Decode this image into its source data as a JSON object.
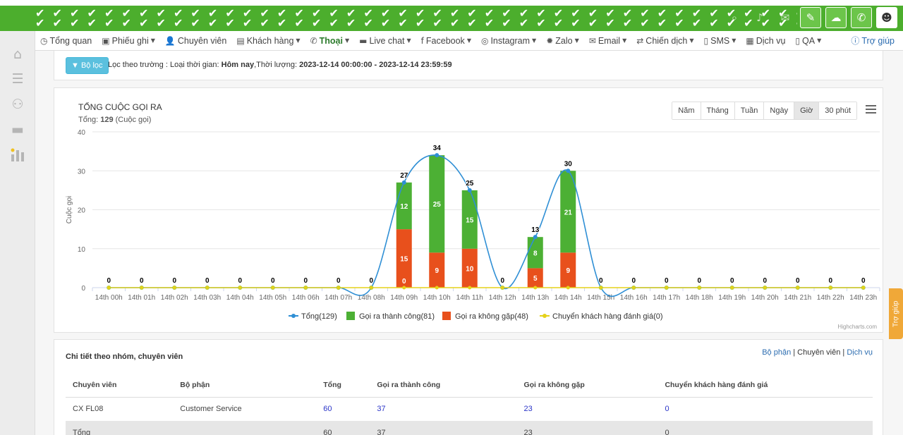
{
  "header": {
    "pattern": "✔ ✔ ✔ ✔ ✔ ✔ ✔ ✔ ✔ ✔ ✔ ✔ ✔ ✔ ✔ ✔ ✔ ✔ ✔ ✔ ✔ ✔ ✔ ✔ ✔ ✔ ✔ ✔ ✔ ✔ ✔ ✔ ✔ ✔ ✔ ✔ ✔ ✔ ✔ ✔ ✔ ✔ ✔ ✔ ✔ ✔ ✔ ✔ ✔ ✔ ✔ ✔ ✔ ✔ ✔ ✔ ✔ ✔ ✔ ✔ ✔ ✔ ✔ ✔",
    "icons": [
      "search-icon",
      "bell-icon",
      "mail-icon",
      "ticket-icon",
      "chat-icon",
      "phone-icon",
      "user-icon"
    ]
  },
  "sidebar": {
    "icons": [
      "home-icon",
      "list-icon",
      "users-icon",
      "chat-bubble-icon",
      "bar-chart-icon"
    ]
  },
  "nav": {
    "items": [
      {
        "icon": "◷",
        "label": "Tổng quan",
        "caret": false
      },
      {
        "icon": "▣",
        "label": "Phiếu ghi",
        "caret": true
      },
      {
        "icon": "👤",
        "label": "Chuyên viên",
        "caret": false
      },
      {
        "icon": "▤",
        "label": "Khách hàng",
        "caret": true
      },
      {
        "icon": "✆",
        "label": "Thoại",
        "caret": true
      },
      {
        "icon": "▬",
        "label": "Live chat",
        "caret": true
      },
      {
        "icon": "f",
        "label": "Facebook",
        "caret": true
      },
      {
        "icon": "◎",
        "label": "Instagram",
        "caret": true
      },
      {
        "icon": "✹",
        "label": "Zalo",
        "caret": true
      },
      {
        "icon": "✉",
        "label": "Email",
        "caret": true
      },
      {
        "icon": "⇄",
        "label": "Chiến dịch",
        "caret": true
      },
      {
        "icon": "▯",
        "label": "SMS",
        "caret": true
      },
      {
        "icon": "▦",
        "label": "Dịch vụ",
        "caret": false
      },
      {
        "icon": "▯",
        "label": "QA",
        "caret": true
      }
    ],
    "help": "Trợ giúp"
  },
  "filter": {
    "button": "Bộ lọc",
    "prefix": "Lọc theo trường : Loại thời gian:",
    "time_type": "Hôm nay",
    "duration_label": ",Thời lượng:",
    "duration": "2023-12-14 00:00:00 - 2023-12-14 23:59:59"
  },
  "chart_panel": {
    "title": "TỔNG CUỘC GỌI RA",
    "subtitle_prefix": "Tổng:",
    "subtitle_total": "129",
    "subtitle_suffix": "(Cuộc gọi)",
    "ranges": [
      "Năm",
      "Tháng",
      "Tuần",
      "Ngày",
      "Giờ",
      "30 phút"
    ],
    "active_range": "Giờ",
    "credits": "Highcharts.com"
  },
  "chart_data": {
    "type": "bar",
    "ylabel": "Cuộc gọi",
    "ylim": [
      0,
      40
    ],
    "yticks": [
      0,
      10,
      20,
      30,
      40
    ],
    "categories": [
      "14th 00h",
      "14th 01h",
      "14th 02h",
      "14th 03h",
      "14th 04h",
      "14th 05h",
      "14th 06h",
      "14th 07h",
      "14th 08h",
      "14th 09h",
      "14th 10h",
      "14th 11h",
      "14th 12h",
      "14th 13h",
      "14th 14h",
      "14th 15h",
      "14th 16h",
      "14th 17h",
      "14th 18h",
      "14th 19h",
      "14th 20h",
      "14th 21h",
      "14th 22h",
      "14th 23h"
    ],
    "series": [
      {
        "name": "Tổng(129)",
        "kind": "spline",
        "color": "#2f8fd5",
        "values": [
          0,
          0,
          0,
          0,
          0,
          0,
          0,
          0,
          0,
          27,
          34,
          25,
          0,
          13,
          30,
          0,
          0,
          0,
          0,
          0,
          0,
          0,
          0,
          0
        ]
      },
      {
        "name": "Gọi ra thành công(81)",
        "kind": "stacked-column",
        "color": "#4cb034",
        "values": [
          0,
          0,
          0,
          0,
          0,
          0,
          0,
          0,
          0,
          12,
          25,
          15,
          0,
          8,
          21,
          0,
          0,
          0,
          0,
          0,
          0,
          0,
          0,
          0
        ]
      },
      {
        "name": "Gọi ra không gặp(48)",
        "kind": "stacked-column",
        "color": "#e8501c",
        "values": [
          0,
          0,
          0,
          0,
          0,
          0,
          0,
          0,
          0,
          15,
          9,
          10,
          0,
          5,
          9,
          0,
          0,
          0,
          0,
          0,
          0,
          0,
          0,
          0
        ]
      },
      {
        "name": "Chuyển khách hàng đánh giá(0)",
        "kind": "line",
        "color": "#e5d21a",
        "values": [
          0,
          0,
          0,
          0,
          0,
          0,
          0,
          0,
          0,
          0,
          0,
          0,
          0,
          0,
          0,
          0,
          0,
          0,
          0,
          0,
          0,
          0,
          0,
          0
        ]
      }
    ],
    "grid": true,
    "legend": "bottom-center"
  },
  "table_panel": {
    "title": "Chi tiết theo nhóm, chuyên viên",
    "links": [
      "Bộ phận",
      "Chuyên viên",
      "Dịch vụ"
    ],
    "columns": [
      "Chuyên viên",
      "Bộ phận",
      "Tổng",
      "Gọi ra thành công",
      "Gọi ra không gặp",
      "Chuyển khách hàng đánh giá"
    ],
    "rows": [
      [
        "CX FL08",
        "Customer Service",
        "60",
        "37",
        "23",
        "0"
      ]
    ],
    "total_row": [
      "Tổng",
      "",
      "60",
      "37",
      "23",
      "0"
    ]
  },
  "side_tab": "Trợ giúp"
}
